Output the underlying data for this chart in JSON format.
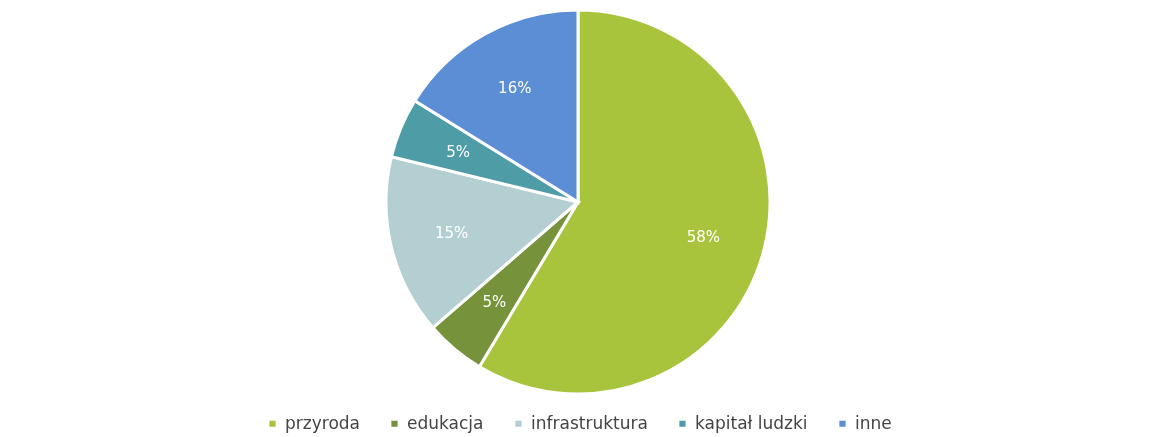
{
  "chart_data": {
    "type": "pie",
    "categories": [
      "przyroda",
      "edukacja",
      "infrastruktura",
      "kapitał ludzki",
      "inne"
    ],
    "values": [
      58,
      5,
      15,
      5,
      16
    ],
    "colors": [
      "#a8c43c",
      "#76923a",
      "#b4cfd2",
      "#4e9ca6",
      "#5b8ed4"
    ],
    "value_labels": [
      "58%",
      "5%",
      "15%",
      "5%",
      "16%"
    ],
    "legend": "bottom"
  }
}
